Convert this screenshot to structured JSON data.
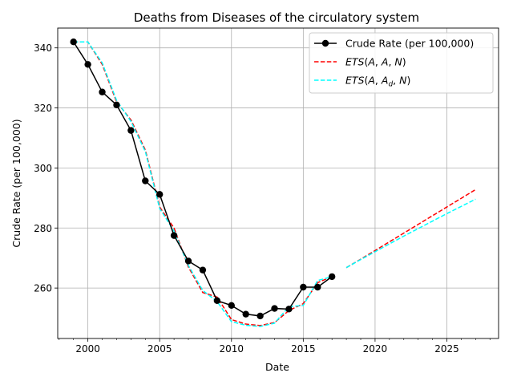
{
  "chart_data": {
    "type": "line",
    "title": "Deaths from Diseases of the circulatory system",
    "xlabel": "Date",
    "ylabel": "Crude Rate (per 100,000)",
    "xlim": [
      1997.9,
      2028.6
    ],
    "ylim": [
      243.2,
      346.6
    ],
    "x_ticks": [
      2000,
      2005,
      2010,
      2015,
      2020,
      2025
    ],
    "x_tick_labels": [
      "2000",
      "2005",
      "2010",
      "2015",
      "2020",
      "2025"
    ],
    "y_ticks": [
      260,
      280,
      300,
      320,
      340
    ],
    "y_tick_labels": [
      "260",
      "280",
      "300",
      "320",
      "340"
    ],
    "grid": true,
    "legend_position": "top-right",
    "legend": [
      "Crude Rate (per 100,000)",
      "ETS(A, A, N)",
      "ETS(A, A_d, N)"
    ],
    "series": [
      {
        "name": "Crude Rate (per 100,000)",
        "color": "#000000",
        "style": "solid-marker",
        "x": [
          1999,
          2000,
          2001,
          2002,
          2003,
          2004,
          2005,
          2006,
          2007,
          2008,
          2009,
          2010,
          2011,
          2012,
          2013,
          2014,
          2015,
          2016,
          2017
        ],
        "y": [
          342.0,
          334.5,
          325.3,
          321.0,
          312.5,
          295.7,
          291.2,
          277.5,
          269.0,
          266.0,
          255.8,
          254.2,
          251.3,
          250.7,
          253.2,
          253.0,
          260.3,
          260.3,
          263.8
        ]
      },
      {
        "name": "ETS(A, A, N)",
        "color": "#ff0000",
        "style": "dashed",
        "segments": [
          {
            "x": [
              1999,
              2000,
              2001,
              2002,
              2003,
              2004,
              2005,
              2006,
              2007,
              2008,
              2009,
              2010,
              2011,
              2012,
              2013,
              2014,
              2015,
              2016,
              2017
            ],
            "y": [
              342.0,
              342.0,
              334.5,
              322.0,
              316.0,
              306.0,
              287.0,
              280.0,
              267.0,
              258.5,
              257.0,
              249.5,
              248.0,
              247.5,
              248.5,
              252.5,
              254.8,
              261.8,
              263.8
            ]
          },
          {
            "x": [
              2018,
              2019,
              2020,
              2021,
              2022,
              2023,
              2024,
              2025,
              2026,
              2027
            ],
            "y": [
              266.8,
              269.6,
              272.5,
              275.4,
              278.3,
              281.2,
              284.1,
              287.0,
              289.9,
              292.8
            ]
          }
        ]
      },
      {
        "name": "ETS(A, A_d, N)",
        "color": "#00ffff",
        "style": "dashed",
        "segments": [
          {
            "x": [
              1999,
              2000,
              2001,
              2002,
              2003,
              2004,
              2005,
              2006,
              2007,
              2008,
              2009,
              2010,
              2011,
              2012,
              2013,
              2014,
              2015,
              2016,
              2017
            ],
            "y": [
              342.0,
              342.0,
              335.0,
              322.5,
              315.5,
              305.5,
              286.5,
              279.0,
              267.5,
              259.2,
              255.5,
              248.8,
              247.6,
              247.2,
              248.3,
              253.8,
              254.2,
              262.5,
              263.8
            ]
          },
          {
            "x": [
              2018,
              2019,
              2020,
              2021,
              2022,
              2023,
              2024,
              2025,
              2026,
              2027
            ],
            "y": [
              266.8,
              269.5,
              272.1,
              274.7,
              277.3,
              279.8,
              282.3,
              284.8,
              287.2,
              289.6
            ]
          }
        ]
      }
    ]
  }
}
